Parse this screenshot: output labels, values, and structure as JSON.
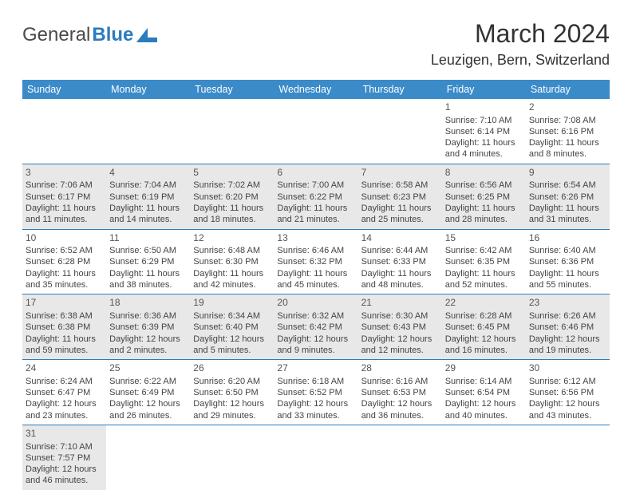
{
  "brand": {
    "part1": "General",
    "part2": "Blue"
  },
  "title": "March 2024",
  "location": "Leuzigen, Bern, Switzerland",
  "colors": {
    "header_bg": "#3b8bc9",
    "header_text": "#ffffff",
    "cell_border": "#2b7bbf",
    "shaded_bg": "#e8e8e8",
    "brand_blue": "#2b7bbf",
    "text": "#333333"
  },
  "dayNames": [
    "Sunday",
    "Monday",
    "Tuesday",
    "Wednesday",
    "Thursday",
    "Friday",
    "Saturday"
  ],
  "weeks": [
    [
      {
        "empty": true
      },
      {
        "empty": true
      },
      {
        "empty": true
      },
      {
        "empty": true
      },
      {
        "empty": true
      },
      {
        "num": "1",
        "sunrise": "Sunrise: 7:10 AM",
        "sunset": "Sunset: 6:14 PM",
        "day1": "Daylight: 11 hours",
        "day2": "and 4 minutes."
      },
      {
        "num": "2",
        "sunrise": "Sunrise: 7:08 AM",
        "sunset": "Sunset: 6:16 PM",
        "day1": "Daylight: 11 hours",
        "day2": "and 8 minutes."
      }
    ],
    [
      {
        "num": "3",
        "shaded": true,
        "sunrise": "Sunrise: 7:06 AM",
        "sunset": "Sunset: 6:17 PM",
        "day1": "Daylight: 11 hours",
        "day2": "and 11 minutes."
      },
      {
        "num": "4",
        "shaded": true,
        "sunrise": "Sunrise: 7:04 AM",
        "sunset": "Sunset: 6:19 PM",
        "day1": "Daylight: 11 hours",
        "day2": "and 14 minutes."
      },
      {
        "num": "5",
        "shaded": true,
        "sunrise": "Sunrise: 7:02 AM",
        "sunset": "Sunset: 6:20 PM",
        "day1": "Daylight: 11 hours",
        "day2": "and 18 minutes."
      },
      {
        "num": "6",
        "shaded": true,
        "sunrise": "Sunrise: 7:00 AM",
        "sunset": "Sunset: 6:22 PM",
        "day1": "Daylight: 11 hours",
        "day2": "and 21 minutes."
      },
      {
        "num": "7",
        "shaded": true,
        "sunrise": "Sunrise: 6:58 AM",
        "sunset": "Sunset: 6:23 PM",
        "day1": "Daylight: 11 hours",
        "day2": "and 25 minutes."
      },
      {
        "num": "8",
        "shaded": true,
        "sunrise": "Sunrise: 6:56 AM",
        "sunset": "Sunset: 6:25 PM",
        "day1": "Daylight: 11 hours",
        "day2": "and 28 minutes."
      },
      {
        "num": "9",
        "shaded": true,
        "sunrise": "Sunrise: 6:54 AM",
        "sunset": "Sunset: 6:26 PM",
        "day1": "Daylight: 11 hours",
        "day2": "and 31 minutes."
      }
    ],
    [
      {
        "num": "10",
        "sunrise": "Sunrise: 6:52 AM",
        "sunset": "Sunset: 6:28 PM",
        "day1": "Daylight: 11 hours",
        "day2": "and 35 minutes."
      },
      {
        "num": "11",
        "sunrise": "Sunrise: 6:50 AM",
        "sunset": "Sunset: 6:29 PM",
        "day1": "Daylight: 11 hours",
        "day2": "and 38 minutes."
      },
      {
        "num": "12",
        "sunrise": "Sunrise: 6:48 AM",
        "sunset": "Sunset: 6:30 PM",
        "day1": "Daylight: 11 hours",
        "day2": "and 42 minutes."
      },
      {
        "num": "13",
        "sunrise": "Sunrise: 6:46 AM",
        "sunset": "Sunset: 6:32 PM",
        "day1": "Daylight: 11 hours",
        "day2": "and 45 minutes."
      },
      {
        "num": "14",
        "sunrise": "Sunrise: 6:44 AM",
        "sunset": "Sunset: 6:33 PM",
        "day1": "Daylight: 11 hours",
        "day2": "and 48 minutes."
      },
      {
        "num": "15",
        "sunrise": "Sunrise: 6:42 AM",
        "sunset": "Sunset: 6:35 PM",
        "day1": "Daylight: 11 hours",
        "day2": "and 52 minutes."
      },
      {
        "num": "16",
        "sunrise": "Sunrise: 6:40 AM",
        "sunset": "Sunset: 6:36 PM",
        "day1": "Daylight: 11 hours",
        "day2": "and 55 minutes."
      }
    ],
    [
      {
        "num": "17",
        "shaded": true,
        "sunrise": "Sunrise: 6:38 AM",
        "sunset": "Sunset: 6:38 PM",
        "day1": "Daylight: 11 hours",
        "day2": "and 59 minutes."
      },
      {
        "num": "18",
        "shaded": true,
        "sunrise": "Sunrise: 6:36 AM",
        "sunset": "Sunset: 6:39 PM",
        "day1": "Daylight: 12 hours",
        "day2": "and 2 minutes."
      },
      {
        "num": "19",
        "shaded": true,
        "sunrise": "Sunrise: 6:34 AM",
        "sunset": "Sunset: 6:40 PM",
        "day1": "Daylight: 12 hours",
        "day2": "and 5 minutes."
      },
      {
        "num": "20",
        "shaded": true,
        "sunrise": "Sunrise: 6:32 AM",
        "sunset": "Sunset: 6:42 PM",
        "day1": "Daylight: 12 hours",
        "day2": "and 9 minutes."
      },
      {
        "num": "21",
        "shaded": true,
        "sunrise": "Sunrise: 6:30 AM",
        "sunset": "Sunset: 6:43 PM",
        "day1": "Daylight: 12 hours",
        "day2": "and 12 minutes."
      },
      {
        "num": "22",
        "shaded": true,
        "sunrise": "Sunrise: 6:28 AM",
        "sunset": "Sunset: 6:45 PM",
        "day1": "Daylight: 12 hours",
        "day2": "and 16 minutes."
      },
      {
        "num": "23",
        "shaded": true,
        "sunrise": "Sunrise: 6:26 AM",
        "sunset": "Sunset: 6:46 PM",
        "day1": "Daylight: 12 hours",
        "day2": "and 19 minutes."
      }
    ],
    [
      {
        "num": "24",
        "sunrise": "Sunrise: 6:24 AM",
        "sunset": "Sunset: 6:47 PM",
        "day1": "Daylight: 12 hours",
        "day2": "and 23 minutes."
      },
      {
        "num": "25",
        "sunrise": "Sunrise: 6:22 AM",
        "sunset": "Sunset: 6:49 PM",
        "day1": "Daylight: 12 hours",
        "day2": "and 26 minutes."
      },
      {
        "num": "26",
        "sunrise": "Sunrise: 6:20 AM",
        "sunset": "Sunset: 6:50 PM",
        "day1": "Daylight: 12 hours",
        "day2": "and 29 minutes."
      },
      {
        "num": "27",
        "sunrise": "Sunrise: 6:18 AM",
        "sunset": "Sunset: 6:52 PM",
        "day1": "Daylight: 12 hours",
        "day2": "and 33 minutes."
      },
      {
        "num": "28",
        "sunrise": "Sunrise: 6:16 AM",
        "sunset": "Sunset: 6:53 PM",
        "day1": "Daylight: 12 hours",
        "day2": "and 36 minutes."
      },
      {
        "num": "29",
        "sunrise": "Sunrise: 6:14 AM",
        "sunset": "Sunset: 6:54 PM",
        "day1": "Daylight: 12 hours",
        "day2": "and 40 minutes."
      },
      {
        "num": "30",
        "sunrise": "Sunrise: 6:12 AM",
        "sunset": "Sunset: 6:56 PM",
        "day1": "Daylight: 12 hours",
        "day2": "and 43 minutes."
      }
    ],
    [
      {
        "num": "31",
        "shaded": true,
        "sunrise": "Sunrise: 7:10 AM",
        "sunset": "Sunset: 7:57 PM",
        "day1": "Daylight: 12 hours",
        "day2": "and 46 minutes."
      },
      {
        "empty": true
      },
      {
        "empty": true
      },
      {
        "empty": true
      },
      {
        "empty": true
      },
      {
        "empty": true
      },
      {
        "empty": true
      }
    ]
  ]
}
